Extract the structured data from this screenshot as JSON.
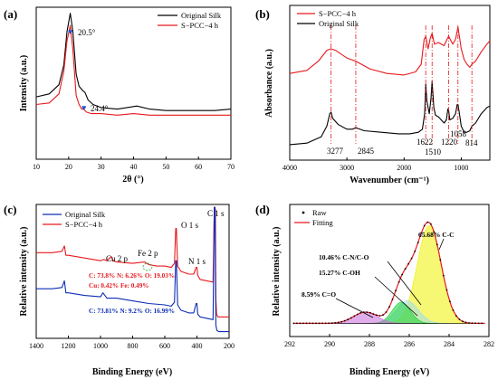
{
  "chart_data": [
    {
      "panel": "(a)",
      "type": "line",
      "xlabel": "2θ (°)",
      "ylabel": "Intensity (a.u.)",
      "xlim": [
        10,
        70
      ],
      "xticks": [
        "10",
        "20",
        "30",
        "40",
        "50",
        "60",
        "70"
      ],
      "legend": [
        "Original Silk",
        "S−PCC−4 h"
      ],
      "legend_position": "top-right",
      "annotations": [
        {
          "marker": "♥",
          "text": "20.5°",
          "x": 20.5
        },
        {
          "marker": "♥",
          "text": "24.4°",
          "x": 24.4
        }
      ],
      "series": [
        {
          "name": "Original Silk",
          "color": "#000000",
          "x": [
            10,
            14,
            17,
            18.5,
            19.5,
            20.5,
            21.3,
            22.3,
            23.2,
            24,
            24.4,
            25,
            26,
            27.5,
            30,
            35,
            38,
            41,
            45,
            50,
            55,
            60,
            65,
            70
          ],
          "y": [
            0.41,
            0.43,
            0.49,
            0.62,
            0.84,
            0.96,
            0.84,
            0.56,
            0.48,
            0.46,
            0.45,
            0.44,
            0.39,
            0.36,
            0.34,
            0.33,
            0.34,
            0.35,
            0.33,
            0.32,
            0.32,
            0.32,
            0.32,
            0.33
          ]
        },
        {
          "name": "S−PCC−4 h",
          "color": "#e8191d",
          "x": [
            10,
            14,
            17,
            18.5,
            19.5,
            20.5,
            21.3,
            22.3,
            23.2,
            24,
            24.6,
            25.5,
            27,
            30,
            35,
            40,
            45,
            50,
            55,
            60,
            65,
            70
          ],
          "y": [
            0.36,
            0.37,
            0.43,
            0.58,
            0.78,
            0.88,
            0.72,
            0.42,
            0.36,
            0.33,
            0.33,
            0.31,
            0.3,
            0.3,
            0.29,
            0.3,
            0.29,
            0.29,
            0.29,
            0.29,
            0.29,
            0.29
          ]
        }
      ]
    },
    {
      "panel": "(b)",
      "type": "line",
      "xlabel": "Wavenumber (cm⁻¹)",
      "ylabel": "Absorbance (a.u.)",
      "xlim": [
        4000,
        500
      ],
      "xticks": [
        "4000",
        "3000",
        "2000",
        "1000"
      ],
      "legend": [
        "S−PCC−4 h",
        "Original Silk"
      ],
      "legend_position": "top-left",
      "peaks": [
        "3277",
        "2845",
        "1622",
        "1510",
        "1220",
        "1058",
        "814"
      ],
      "peak_positions": [
        3277,
        2845,
        1622,
        1510,
        1220,
        1058,
        814
      ],
      "series": [
        {
          "name": "S−PCC−4 h",
          "color": "#e8191d",
          "x": [
            4000,
            3700,
            3500,
            3350,
            3280,
            3200,
            3000,
            2845,
            2600,
            2300,
            2000,
            1800,
            1700,
            1650,
            1622,
            1580,
            1540,
            1510,
            1470,
            1400,
            1300,
            1250,
            1220,
            1150,
            1100,
            1058,
            1000,
            950,
            900,
            850,
            814,
            750,
            650,
            550,
            500
          ],
          "y": [
            0.56,
            0.58,
            0.64,
            0.71,
            0.72,
            0.71,
            0.66,
            0.64,
            0.59,
            0.56,
            0.55,
            0.57,
            0.62,
            0.78,
            0.8,
            0.72,
            0.79,
            0.82,
            0.75,
            0.76,
            0.74,
            0.78,
            0.8,
            0.75,
            0.78,
            0.86,
            0.72,
            0.65,
            0.62,
            0.6,
            0.62,
            0.64,
            0.7,
            0.75,
            0.77
          ]
        },
        {
          "name": "Original Silk",
          "color": "#000000",
          "x": [
            4000,
            3700,
            3450,
            3350,
            3300,
            3277,
            3250,
            3150,
            3000,
            2900,
            2845,
            2700,
            2400,
            2100,
            1900,
            1750,
            1680,
            1640,
            1622,
            1600,
            1560,
            1530,
            1510,
            1480,
            1450,
            1400,
            1300,
            1260,
            1235,
            1220,
            1200,
            1150,
            1100,
            1070,
            1058,
            1040,
            1000,
            950,
            900,
            850,
            814,
            750,
            650,
            550,
            500
          ],
          "y": [
            0.1,
            0.11,
            0.15,
            0.22,
            0.3,
            0.31,
            0.27,
            0.23,
            0.2,
            0.2,
            0.21,
            0.19,
            0.18,
            0.17,
            0.17,
            0.18,
            0.2,
            0.3,
            0.49,
            0.38,
            0.3,
            0.4,
            0.51,
            0.34,
            0.29,
            0.28,
            0.24,
            0.26,
            0.33,
            0.32,
            0.26,
            0.27,
            0.3,
            0.36,
            0.36,
            0.32,
            0.22,
            0.18,
            0.18,
            0.19,
            0.22,
            0.24,
            0.3,
            0.34,
            0.35
          ]
        }
      ]
    },
    {
      "panel": "(c)",
      "type": "line",
      "xlabel": "Binding Energy (eV)",
      "ylabel": "Relative intensity (a.u.)",
      "xlim": [
        1400,
        200
      ],
      "xticks": [
        "1400",
        "1200",
        "1000",
        "800",
        "600",
        "400",
        "200"
      ],
      "legend": [
        "Original Silk",
        "S−PCC−4 h"
      ],
      "legend_position": "top-left",
      "peak_labels": [
        "O 1 s",
        "C 1 s",
        "N 1 s",
        "Cu 2 p",
        "Fe 2 p"
      ],
      "composition_red": {
        "line1": "C: 73.8% N: 6.26% O: 19.03%",
        "line2": "Cu: 0.42% Fe: 0.49%"
      },
      "composition_blue": "C: 73.81% N: 9.2% O: 16.99%",
      "series": [
        {
          "name": "S−PCC−4 h",
          "color": "#e8191d",
          "x": [
            1400,
            1300,
            1240,
            1225,
            1215,
            1200,
            1150,
            1100,
            1000,
            980,
            960,
            933,
            920,
            900,
            800,
            725,
            700,
            650,
            600,
            560,
            540,
            532,
            528,
            520,
            500,
            450,
            420,
            405,
            400,
            395,
            380,
            300,
            292,
            288,
            285,
            282,
            278,
            270,
            250,
            200
          ],
          "y": [
            0.64,
            0.64,
            0.65,
            0.69,
            0.62,
            0.62,
            0.61,
            0.6,
            0.58,
            0.59,
            0.58,
            0.61,
            0.58,
            0.57,
            0.56,
            0.57,
            0.55,
            0.54,
            0.54,
            0.53,
            0.56,
            0.82,
            0.82,
            0.54,
            0.5,
            0.48,
            0.48,
            0.53,
            0.53,
            0.47,
            0.44,
            0.42,
            0.98,
            0.98,
            0.96,
            0.3,
            0.18,
            0.16,
            0.16,
            0.16
          ]
        },
        {
          "name": "Original Silk",
          "color": "#0d2db5",
          "x": [
            1400,
            1300,
            1240,
            1225,
            1215,
            1200,
            1100,
            1000,
            985,
            960,
            900,
            800,
            700,
            600,
            560,
            540,
            532,
            528,
            520,
            500,
            450,
            420,
            405,
            400,
            395,
            380,
            300,
            292,
            288,
            282,
            276,
            265,
            250,
            200
          ],
          "y": [
            0.37,
            0.37,
            0.38,
            0.43,
            0.34,
            0.34,
            0.32,
            0.31,
            0.34,
            0.3,
            0.3,
            0.28,
            0.26,
            0.25,
            0.24,
            0.27,
            0.58,
            0.58,
            0.25,
            0.21,
            0.19,
            0.19,
            0.26,
            0.26,
            0.18,
            0.16,
            0.14,
            0.98,
            0.98,
            0.1,
            0.06,
            0.05,
            0.05,
            0.05
          ]
        }
      ]
    },
    {
      "panel": "(d)",
      "type": "line",
      "xlabel": "Binding Energy (eV)",
      "ylabel": "Relative intensity (a.u.)",
      "xlim": [
        292,
        282
      ],
      "xticks": [
        "292",
        "290",
        "288",
        "286",
        "284",
        "282"
      ],
      "legend": [
        "Raw",
        "Fitting"
      ],
      "legend_position": "top-left",
      "components": [
        {
          "label": "65.68% C-C",
          "center": 285.0,
          "height": 0.74,
          "sigma": 0.6,
          "color": "#eef000"
        },
        {
          "label": "15.27% C-OH",
          "center": 286.1,
          "height": 0.17,
          "sigma": 0.55,
          "color": "#9fdcf0"
        },
        {
          "label": "10.46% C-N/C-O",
          "center": 286.4,
          "height": 0.16,
          "sigma": 0.45,
          "color": "#17d12e"
        },
        {
          "label": "8.59% C=O",
          "center": 288.2,
          "height": 0.085,
          "sigma": 0.6,
          "color": "#c66bd8"
        }
      ],
      "baseline": 0.1,
      "raw_color": "#000000",
      "fit_color": "#e8191d"
    }
  ]
}
